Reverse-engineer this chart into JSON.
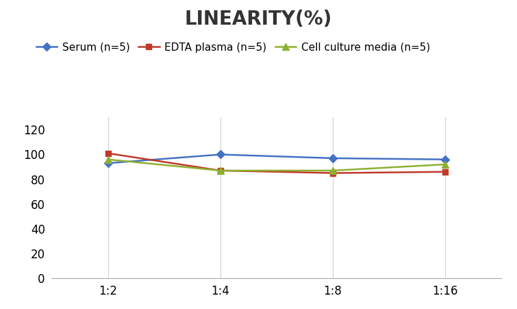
{
  "title": "LINEARITY(%)",
  "x_labels": [
    "1:2",
    "1:4",
    "1:8",
    "1:16"
  ],
  "x_positions": [
    0,
    1,
    2,
    3
  ],
  "series": [
    {
      "label": "Serum (n=5)",
      "values": [
        93,
        100,
        97,
        96
      ],
      "color": "#4472C4",
      "marker": "D",
      "markersize": 6
    },
    {
      "label": "EDTA plasma (n=5)",
      "values": [
        101,
        87,
        85,
        86
      ],
      "color": "#C0392B",
      "marker": "s",
      "markersize": 6
    },
    {
      "label": "Cell culture media (n=5)",
      "values": [
        96,
        87,
        87,
        92
      ],
      "color": "#8DB030",
      "marker": "^",
      "markersize": 7
    }
  ],
  "ylim": [
    0,
    130
  ],
  "yticks": [
    0,
    20,
    40,
    60,
    80,
    100,
    120
  ],
  "title_fontsize": 20,
  "legend_fontsize": 11,
  "tick_fontsize": 12,
  "background_color": "#FFFFFF",
  "grid_color": "#D0D0D0"
}
